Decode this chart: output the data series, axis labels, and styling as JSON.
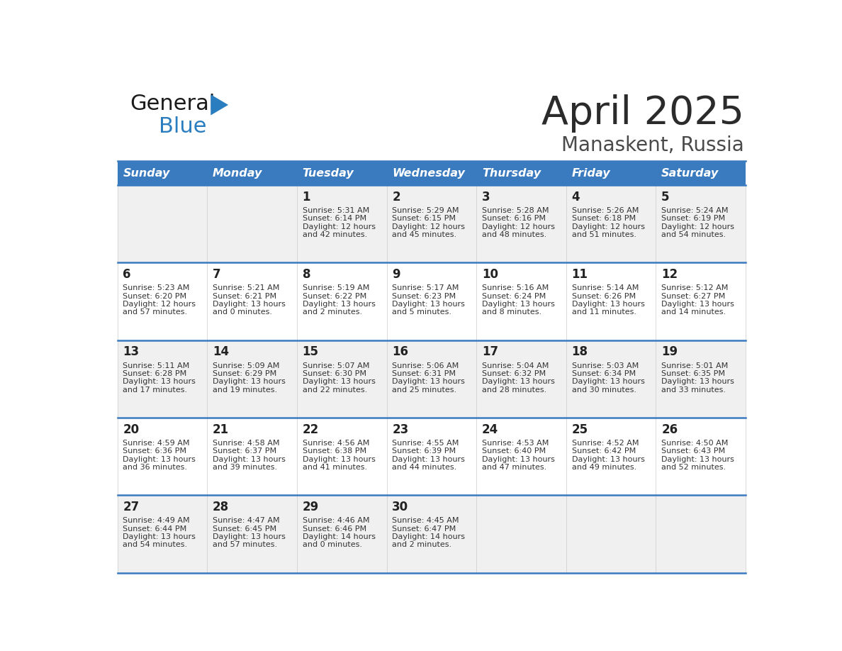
{
  "title": "April 2025",
  "subtitle": "Manaskent, Russia",
  "header_color": "#3a7abf",
  "header_text_color": "#ffffff",
  "cell_bg_white": "#ffffff",
  "cell_bg_gray": "#f0f0f0",
  "border_color": "#3a7abf",
  "days_of_week": [
    "Sunday",
    "Monday",
    "Tuesday",
    "Wednesday",
    "Thursday",
    "Friday",
    "Saturday"
  ],
  "title_color": "#2b2b2b",
  "subtitle_color": "#4a4a4a",
  "day_num_color": "#222222",
  "info_color": "#333333",
  "calendar": [
    [
      {
        "day": "",
        "sunrise": "",
        "sunset": "",
        "daylight_h": "",
        "daylight_m": ""
      },
      {
        "day": "",
        "sunrise": "",
        "sunset": "",
        "daylight_h": "",
        "daylight_m": ""
      },
      {
        "day": "1",
        "sunrise": "5:31 AM",
        "sunset": "6:14 PM",
        "daylight_h": "12 hours",
        "daylight_m": "and 42 minutes."
      },
      {
        "day": "2",
        "sunrise": "5:29 AM",
        "sunset": "6:15 PM",
        "daylight_h": "12 hours",
        "daylight_m": "and 45 minutes."
      },
      {
        "day": "3",
        "sunrise": "5:28 AM",
        "sunset": "6:16 PM",
        "daylight_h": "12 hours",
        "daylight_m": "and 48 minutes."
      },
      {
        "day": "4",
        "sunrise": "5:26 AM",
        "sunset": "6:18 PM",
        "daylight_h": "12 hours",
        "daylight_m": "and 51 minutes."
      },
      {
        "day": "5",
        "sunrise": "5:24 AM",
        "sunset": "6:19 PM",
        "daylight_h": "12 hours",
        "daylight_m": "and 54 minutes."
      }
    ],
    [
      {
        "day": "6",
        "sunrise": "5:23 AM",
        "sunset": "6:20 PM",
        "daylight_h": "12 hours",
        "daylight_m": "and 57 minutes."
      },
      {
        "day": "7",
        "sunrise": "5:21 AM",
        "sunset": "6:21 PM",
        "daylight_h": "13 hours",
        "daylight_m": "and 0 minutes."
      },
      {
        "day": "8",
        "sunrise": "5:19 AM",
        "sunset": "6:22 PM",
        "daylight_h": "13 hours",
        "daylight_m": "and 2 minutes."
      },
      {
        "day": "9",
        "sunrise": "5:17 AM",
        "sunset": "6:23 PM",
        "daylight_h": "13 hours",
        "daylight_m": "and 5 minutes."
      },
      {
        "day": "10",
        "sunrise": "5:16 AM",
        "sunset": "6:24 PM",
        "daylight_h": "13 hours",
        "daylight_m": "and 8 minutes."
      },
      {
        "day": "11",
        "sunrise": "5:14 AM",
        "sunset": "6:26 PM",
        "daylight_h": "13 hours",
        "daylight_m": "and 11 minutes."
      },
      {
        "day": "12",
        "sunrise": "5:12 AM",
        "sunset": "6:27 PM",
        "daylight_h": "13 hours",
        "daylight_m": "and 14 minutes."
      }
    ],
    [
      {
        "day": "13",
        "sunrise": "5:11 AM",
        "sunset": "6:28 PM",
        "daylight_h": "13 hours",
        "daylight_m": "and 17 minutes."
      },
      {
        "day": "14",
        "sunrise": "5:09 AM",
        "sunset": "6:29 PM",
        "daylight_h": "13 hours",
        "daylight_m": "and 19 minutes."
      },
      {
        "day": "15",
        "sunrise": "5:07 AM",
        "sunset": "6:30 PM",
        "daylight_h": "13 hours",
        "daylight_m": "and 22 minutes."
      },
      {
        "day": "16",
        "sunrise": "5:06 AM",
        "sunset": "6:31 PM",
        "daylight_h": "13 hours",
        "daylight_m": "and 25 minutes."
      },
      {
        "day": "17",
        "sunrise": "5:04 AM",
        "sunset": "6:32 PM",
        "daylight_h": "13 hours",
        "daylight_m": "and 28 minutes."
      },
      {
        "day": "18",
        "sunrise": "5:03 AM",
        "sunset": "6:34 PM",
        "daylight_h": "13 hours",
        "daylight_m": "and 30 minutes."
      },
      {
        "day": "19",
        "sunrise": "5:01 AM",
        "sunset": "6:35 PM",
        "daylight_h": "13 hours",
        "daylight_m": "and 33 minutes."
      }
    ],
    [
      {
        "day": "20",
        "sunrise": "4:59 AM",
        "sunset": "6:36 PM",
        "daylight_h": "13 hours",
        "daylight_m": "and 36 minutes."
      },
      {
        "day": "21",
        "sunrise": "4:58 AM",
        "sunset": "6:37 PM",
        "daylight_h": "13 hours",
        "daylight_m": "and 39 minutes."
      },
      {
        "day": "22",
        "sunrise": "4:56 AM",
        "sunset": "6:38 PM",
        "daylight_h": "13 hours",
        "daylight_m": "and 41 minutes."
      },
      {
        "day": "23",
        "sunrise": "4:55 AM",
        "sunset": "6:39 PM",
        "daylight_h": "13 hours",
        "daylight_m": "and 44 minutes."
      },
      {
        "day": "24",
        "sunrise": "4:53 AM",
        "sunset": "6:40 PM",
        "daylight_h": "13 hours",
        "daylight_m": "and 47 minutes."
      },
      {
        "day": "25",
        "sunrise": "4:52 AM",
        "sunset": "6:42 PM",
        "daylight_h": "13 hours",
        "daylight_m": "and 49 minutes."
      },
      {
        "day": "26",
        "sunrise": "4:50 AM",
        "sunset": "6:43 PM",
        "daylight_h": "13 hours",
        "daylight_m": "and 52 minutes."
      }
    ],
    [
      {
        "day": "27",
        "sunrise": "4:49 AM",
        "sunset": "6:44 PM",
        "daylight_h": "13 hours",
        "daylight_m": "and 54 minutes."
      },
      {
        "day": "28",
        "sunrise": "4:47 AM",
        "sunset": "6:45 PM",
        "daylight_h": "13 hours",
        "daylight_m": "and 57 minutes."
      },
      {
        "day": "29",
        "sunrise": "4:46 AM",
        "sunset": "6:46 PM",
        "daylight_h": "14 hours",
        "daylight_m": "and 0 minutes."
      },
      {
        "day": "30",
        "sunrise": "4:45 AM",
        "sunset": "6:47 PM",
        "daylight_h": "14 hours",
        "daylight_m": "and 2 minutes."
      },
      {
        "day": "",
        "sunrise": "",
        "sunset": "",
        "daylight_h": "",
        "daylight_m": ""
      },
      {
        "day": "",
        "sunrise": "",
        "sunset": "",
        "daylight_h": "",
        "daylight_m": ""
      },
      {
        "day": "",
        "sunrise": "",
        "sunset": "",
        "daylight_h": "",
        "daylight_m": ""
      }
    ]
  ],
  "logo_general_color": "#1a1a1a",
  "logo_blue_color": "#2a7dbf"
}
